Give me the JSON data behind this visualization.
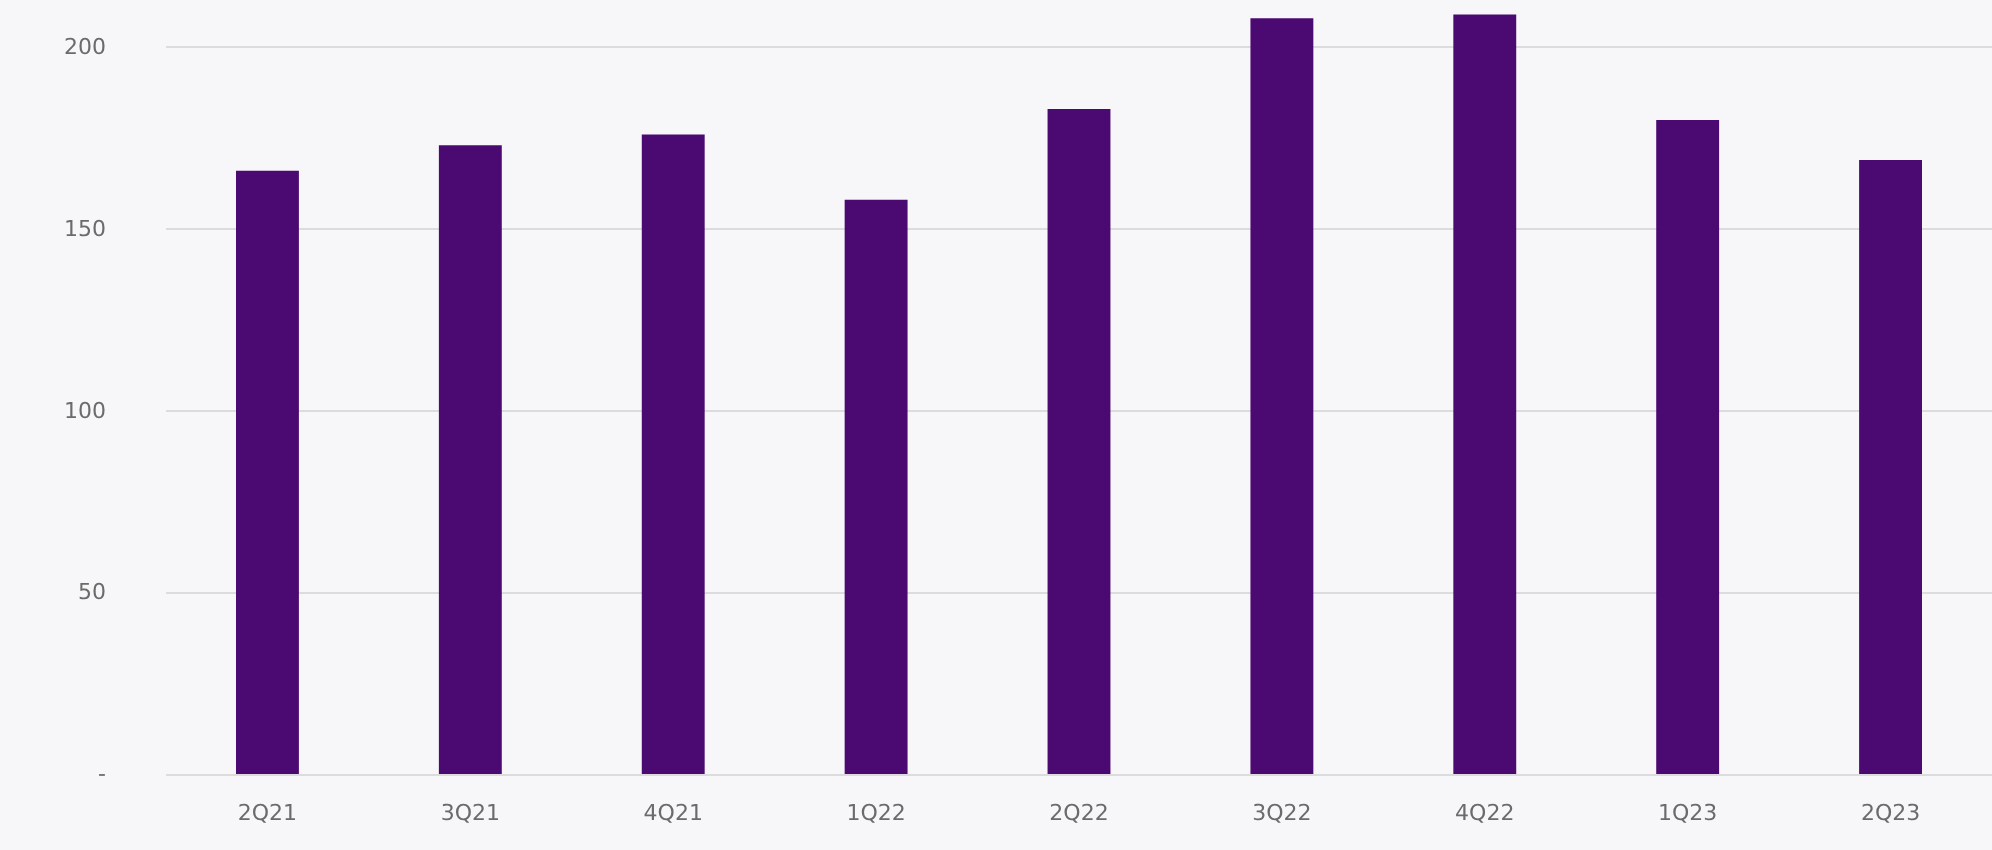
{
  "chart_data": {
    "type": "bar",
    "categories": [
      "2Q21",
      "3Q21",
      "4Q21",
      "1Q22",
      "2Q22",
      "3Q22",
      "4Q22",
      "1Q23",
      "2Q23"
    ],
    "values": [
      166,
      173,
      176,
      158,
      183,
      208,
      209,
      180,
      169
    ],
    "color": "#4b0a72",
    "ylim": [
      0,
      213
    ],
    "yticks": [
      {
        "value": 0,
        "label": "-"
      },
      50,
      100,
      150,
      200
    ],
    "grid": "y"
  }
}
